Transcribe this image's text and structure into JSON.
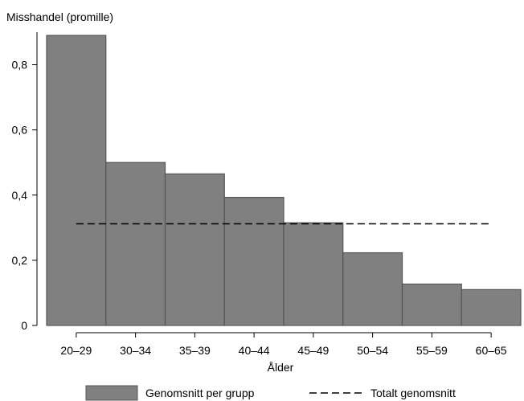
{
  "chart_data": {
    "type": "bar",
    "ylabel": "Misshandel (promille)",
    "xlabel": "Ålder",
    "categories": [
      "20–29",
      "30–34",
      "35–39",
      "40–44",
      "45–49",
      "50–54",
      "55–59",
      "60–65"
    ],
    "series": [
      {
        "name": "Genomsnitt per grupp",
        "values": [
          0.89,
          0.5,
          0.465,
          0.393,
          0.315,
          0.223,
          0.127,
          0.11
        ]
      }
    ],
    "overall_mean": {
      "name": "Totalt genomsnitt",
      "value": 0.312
    },
    "ylim": [
      0,
      0.9
    ],
    "yticks": [
      0,
      0.2,
      0.4,
      0.6,
      0.8
    ],
    "ytick_labels": [
      "0",
      "0,2",
      "0,4",
      "0,6",
      "0,8"
    ],
    "grid": false,
    "legend_position": "bottom",
    "colors": {
      "bar": "#808080",
      "bar_edge": "#555555",
      "mean_line": "#000000"
    }
  }
}
